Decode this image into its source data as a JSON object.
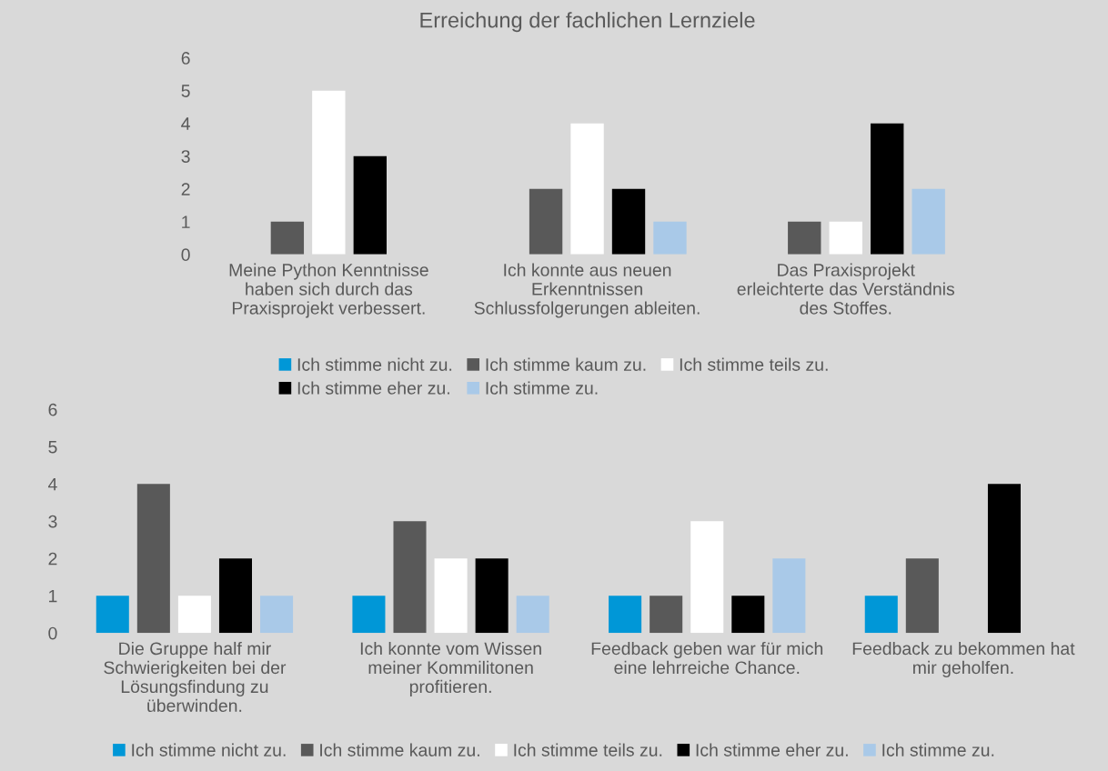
{
  "chart_data": [
    {
      "type": "bar",
      "title": "Erreichung der fachlichen Lernziele",
      "categories": [
        "Meine Python Kenntnisse\nhaben sich durch das\nPraxisprojekt verbessert.",
        "Ich konnte aus neuen\nErkenntnissen\nSchlussfolgerungen ableiten.",
        "Das Praxisprojekt\nerleichterte das Verständnis\ndes Stoffes."
      ],
      "series": [
        {
          "name": "Ich stimme nicht zu.",
          "color": "#0097d7",
          "values": [
            0,
            0,
            0
          ]
        },
        {
          "name": "Ich stimme kaum zu.",
          "color": "#595959",
          "values": [
            1,
            2,
            1
          ]
        },
        {
          "name": "Ich stimme teils zu.",
          "color": "#ffffff",
          "values": [
            5,
            4,
            1
          ]
        },
        {
          "name": "Ich stimme eher zu.",
          "color": "#000000",
          "values": [
            3,
            2,
            4
          ]
        },
        {
          "name": "Ich stimme zu.",
          "color": "#a9c9e8",
          "values": [
            0,
            1,
            2
          ]
        }
      ],
      "ylim": [
        0,
        6
      ],
      "yticks": [
        0,
        1,
        2,
        3,
        4,
        5,
        6
      ],
      "grid": false,
      "legend": "bottom"
    },
    {
      "type": "bar",
      "categories": [
        "Die Gruppe half mir\nSchwierigkeiten bei der\nLösungsfindung zu\nüberwinden.",
        "Ich konnte vom Wissen\nmeiner Kommilitonen\nprofitieren.",
        "Feedback geben war für mich\neine lehrreiche Chance.",
        "Feedback zu bekommen hat\nmir geholfen."
      ],
      "series": [
        {
          "name": "Ich stimme nicht zu.",
          "color": "#0097d7",
          "values": [
            1,
            1,
            1,
            1
          ]
        },
        {
          "name": "Ich stimme kaum zu.",
          "color": "#595959",
          "values": [
            4,
            3,
            1,
            2
          ]
        },
        {
          "name": "Ich stimme teils zu.",
          "color": "#ffffff",
          "values": [
            1,
            2,
            3,
            0
          ]
        },
        {
          "name": "Ich stimme eher zu.",
          "color": "#000000",
          "values": [
            2,
            2,
            1,
            4
          ]
        },
        {
          "name": "Ich stimme zu.",
          "color": "#a9c9e8",
          "values": [
            1,
            1,
            2,
            0
          ]
        }
      ],
      "ylim": [
        0,
        6
      ],
      "yticks": [
        0,
        1,
        2,
        3,
        4,
        5,
        6
      ],
      "grid": false,
      "legend": "bottom"
    }
  ]
}
